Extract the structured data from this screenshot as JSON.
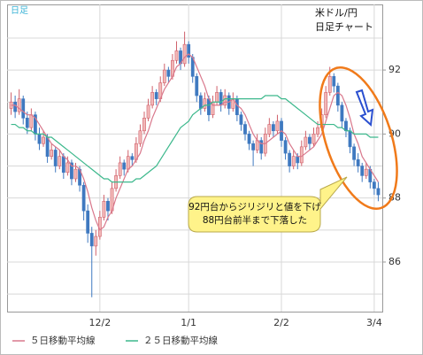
{
  "chart_data": {
    "type": "candlestick",
    "corner_label": "日足",
    "title": "米ドル/円",
    "subtitle": "日足チャート",
    "annotation": [
      "92円台からジリジリと値を下げ",
      "88円台前半まで下落した"
    ],
    "categories": [
      null,
      null,
      null,
      null,
      null,
      null,
      null,
      null,
      null,
      null,
      null,
      null,
      null,
      null,
      null,
      null,
      null,
      null,
      null,
      null,
      null,
      null,
      "12/2",
      null,
      null,
      null,
      null,
      null,
      null,
      null,
      null,
      null,
      null,
      null,
      null,
      null,
      null,
      null,
      null,
      null,
      null,
      null,
      null,
      null,
      "1/1",
      null,
      null,
      null,
      null,
      null,
      null,
      null,
      null,
      null,
      null,
      null,
      null,
      null,
      null,
      null,
      null,
      null,
      null,
      null,
      null,
      null,
      null,
      "2/2",
      null,
      null,
      null,
      null,
      null,
      null,
      null,
      null,
      null,
      null,
      null,
      null,
      null,
      null,
      null,
      null,
      null,
      null,
      null,
      null,
      null,
      null,
      "3/4",
      null
    ],
    "ohlc": [
      [
        90.8,
        91.3,
        90.6,
        91.0
      ],
      [
        91.0,
        91.2,
        90.5,
        90.7
      ],
      [
        90.7,
        91.4,
        90.6,
        91.1
      ],
      [
        91.1,
        91.2,
        90.3,
        90.5
      ],
      [
        90.5,
        90.7,
        90.0,
        90.2
      ],
      [
        90.2,
        90.8,
        90.1,
        90.6
      ],
      [
        90.6,
        90.7,
        89.8,
        90.0
      ],
      [
        90.0,
        90.2,
        89.5,
        89.7
      ],
      [
        89.7,
        90.1,
        89.6,
        89.9
      ],
      [
        89.9,
        90.0,
        89.1,
        89.3
      ],
      [
        89.3,
        89.7,
        89.2,
        89.5
      ],
      [
        89.5,
        89.6,
        88.8,
        89.0
      ],
      [
        89.0,
        89.5,
        88.9,
        89.3
      ],
      [
        89.3,
        89.4,
        88.6,
        88.8
      ],
      [
        88.8,
        89.3,
        88.7,
        89.1
      ],
      [
        89.1,
        89.2,
        88.4,
        88.6
      ],
      [
        88.6,
        89.1,
        88.5,
        88.9
      ],
      [
        88.9,
        89.0,
        88.2,
        88.4
      ],
      [
        88.4,
        88.5,
        87.3,
        87.6
      ],
      [
        87.6,
        87.8,
        86.6,
        86.9
      ],
      [
        86.9,
        87.1,
        84.9,
        86.5
      ],
      [
        86.5,
        87.0,
        86.2,
        86.8
      ],
      [
        86.8,
        87.6,
        86.7,
        87.4
      ],
      [
        87.4,
        88.1,
        87.3,
        87.9
      ],
      [
        87.9,
        88.0,
        87.3,
        87.6
      ],
      [
        87.6,
        88.5,
        87.5,
        88.3
      ],
      [
        88.3,
        88.9,
        88.2,
        88.7
      ],
      [
        88.7,
        89.3,
        88.6,
        89.1
      ],
      [
        89.1,
        89.2,
        88.7,
        88.9
      ],
      [
        88.9,
        89.5,
        88.8,
        89.3
      ],
      [
        89.3,
        89.4,
        89.0,
        89.2
      ],
      [
        89.2,
        89.9,
        89.1,
        89.7
      ],
      [
        89.7,
        90.3,
        89.6,
        90.1
      ],
      [
        90.1,
        90.7,
        90.0,
        90.5
      ],
      [
        90.5,
        91.1,
        90.4,
        90.9
      ],
      [
        90.9,
        91.5,
        90.8,
        91.3
      ],
      [
        91.3,
        91.4,
        90.9,
        91.1
      ],
      [
        91.1,
        91.8,
        91.0,
        91.6
      ],
      [
        91.6,
        92.2,
        91.5,
        92.0
      ],
      [
        92.0,
        92.1,
        91.6,
        91.8
      ],
      [
        91.8,
        92.5,
        91.7,
        92.3
      ],
      [
        92.3,
        92.9,
        92.2,
        92.6
      ],
      [
        92.6,
        92.7,
        92.0,
        92.2
      ],
      [
        92.2,
        93.2,
        92.1,
        92.8
      ],
      [
        92.8,
        92.9,
        92.2,
        92.4
      ],
      [
        92.4,
        92.5,
        91.6,
        91.8
      ],
      [
        91.8,
        91.9,
        91.0,
        91.2
      ],
      [
        91.2,
        91.3,
        90.6,
        90.8
      ],
      [
        90.8,
        91.3,
        90.7,
        91.1
      ],
      [
        91.1,
        91.2,
        90.4,
        90.6
      ],
      [
        90.6,
        91.2,
        90.5,
        91.0
      ],
      [
        91.0,
        91.5,
        90.9,
        91.3
      ],
      [
        91.3,
        91.4,
        90.7,
        90.9
      ],
      [
        90.9,
        91.4,
        90.8,
        91.2
      ],
      [
        91.2,
        91.3,
        90.6,
        90.8
      ],
      [
        90.8,
        91.3,
        90.7,
        91.1
      ],
      [
        91.1,
        91.2,
        90.4,
        90.6
      ],
      [
        90.6,
        90.7,
        90.1,
        90.3
      ],
      [
        90.3,
        90.4,
        89.8,
        90.0
      ],
      [
        90.0,
        90.1,
        89.5,
        89.7
      ],
      [
        89.7,
        89.8,
        89.0,
        89.5
      ],
      [
        89.5,
        90.0,
        89.4,
        89.8
      ],
      [
        89.8,
        89.9,
        89.2,
        89.4
      ],
      [
        89.4,
        90.2,
        89.3,
        90.0
      ],
      [
        90.0,
        90.5,
        89.9,
        90.3
      ],
      [
        90.3,
        90.4,
        89.9,
        90.1
      ],
      [
        90.1,
        90.6,
        90.0,
        90.4
      ],
      [
        90.4,
        90.5,
        89.6,
        89.8
      ],
      [
        89.8,
        89.9,
        89.2,
        89.4
      ],
      [
        89.4,
        89.5,
        88.8,
        89.0
      ],
      [
        89.0,
        89.5,
        88.9,
        89.3
      ],
      [
        89.3,
        89.4,
        88.9,
        89.1
      ],
      [
        89.1,
        89.8,
        89.0,
        89.6
      ],
      [
        89.6,
        90.1,
        89.5,
        89.9
      ],
      [
        89.9,
        90.0,
        89.5,
        89.7
      ],
      [
        89.7,
        90.2,
        89.6,
        90.0
      ],
      [
        90.0,
        90.4,
        89.9,
        90.2
      ],
      [
        90.2,
        90.8,
        90.1,
        90.6
      ],
      [
        90.6,
        91.5,
        90.5,
        91.3
      ],
      [
        91.3,
        92.1,
        91.2,
        91.8
      ],
      [
        91.8,
        91.9,
        91.3,
        91.5
      ],
      [
        91.5,
        91.6,
        90.7,
        90.9
      ],
      [
        90.9,
        91.0,
        90.2,
        90.4
      ],
      [
        90.4,
        90.5,
        89.9,
        90.1
      ],
      [
        90.1,
        90.2,
        89.4,
        89.6
      ],
      [
        89.6,
        89.7,
        89.0,
        89.2
      ],
      [
        89.2,
        89.4,
        88.8,
        89.0
      ],
      [
        89.0,
        89.1,
        88.5,
        88.7
      ],
      [
        88.7,
        89.1,
        88.6,
        88.9
      ],
      [
        88.9,
        89.0,
        88.3,
        88.5
      ],
      [
        88.5,
        88.6,
        88.1,
        88.3
      ],
      [
        88.3,
        88.5,
        87.9,
        88.1
      ]
    ],
    "up_color": "#f2b8b8",
    "up_stroke": "#d0606a",
    "down_color": "#3f79c0",
    "series": [
      {
        "name": "５日移動平均線",
        "color": "#d9788c",
        "values": [
          90.9,
          90.9,
          90.8,
          90.7,
          90.6,
          90.6,
          90.5,
          90.3,
          90.1,
          89.9,
          89.7,
          89.6,
          89.5,
          89.3,
          89.2,
          89.0,
          89.0,
          88.9,
          88.6,
          88.2,
          87.7,
          87.3,
          87.0,
          87.1,
          87.4,
          87.6,
          88.0,
          88.3,
          88.6,
          88.9,
          89.0,
          89.2,
          89.4,
          89.8,
          90.1,
          90.5,
          90.8,
          91.1,
          91.4,
          91.6,
          91.8,
          92.1,
          92.2,
          92.4,
          92.5,
          92.4,
          92.1,
          91.8,
          91.5,
          91.1,
          90.9,
          90.9,
          90.9,
          91.0,
          91.0,
          91.1,
          90.9,
          90.8,
          90.6,
          90.3,
          90.0,
          89.8,
          89.7,
          89.7,
          89.8,
          89.9,
          90.0,
          90.1,
          90.0,
          89.7,
          89.5,
          89.3,
          89.3,
          89.4,
          89.5,
          89.6,
          89.8,
          90.0,
          90.4,
          90.8,
          91.2,
          91.3,
          91.2,
          90.9,
          90.5,
          90.0,
          89.7,
          89.3,
          89.1,
          88.9,
          88.7,
          88.5
        ]
      },
      {
        "name": "２５日移動平均線",
        "color": "#3cb88c",
        "values": [
          90.3,
          90.3,
          90.2,
          90.2,
          90.1,
          90.1,
          90.0,
          90.0,
          90.0,
          89.9,
          89.9,
          89.8,
          89.7,
          89.6,
          89.5,
          89.4,
          89.3,
          89.2,
          89.1,
          89.0,
          88.9,
          88.8,
          88.7,
          88.6,
          88.6,
          88.5,
          88.5,
          88.5,
          88.5,
          88.5,
          88.5,
          88.6,
          88.6,
          88.7,
          88.8,
          88.9,
          89.0,
          89.2,
          89.4,
          89.6,
          89.8,
          90.0,
          90.2,
          90.3,
          90.4,
          90.6,
          90.7,
          90.8,
          90.9,
          90.9,
          91.0,
          91.0,
          91.0,
          91.1,
          91.1,
          91.1,
          91.1,
          91.1,
          91.1,
          91.1,
          91.1,
          91.1,
          91.1,
          91.2,
          91.2,
          91.2,
          91.2,
          91.1,
          91.1,
          91.0,
          90.9,
          90.8,
          90.7,
          90.6,
          90.5,
          90.4,
          90.3,
          90.3,
          90.3,
          90.3,
          90.3,
          90.2,
          90.2,
          90.1,
          90.1,
          90.0,
          90.0,
          90.0,
          90.0,
          89.9,
          89.9,
          89.9
        ]
      }
    ],
    "ylim": [
      84.45,
      94.05
    ],
    "yticks": [
      86,
      88,
      90,
      92
    ],
    "minor_grid": [
      85,
      87,
      89,
      91,
      93
    ],
    "grid": true
  }
}
